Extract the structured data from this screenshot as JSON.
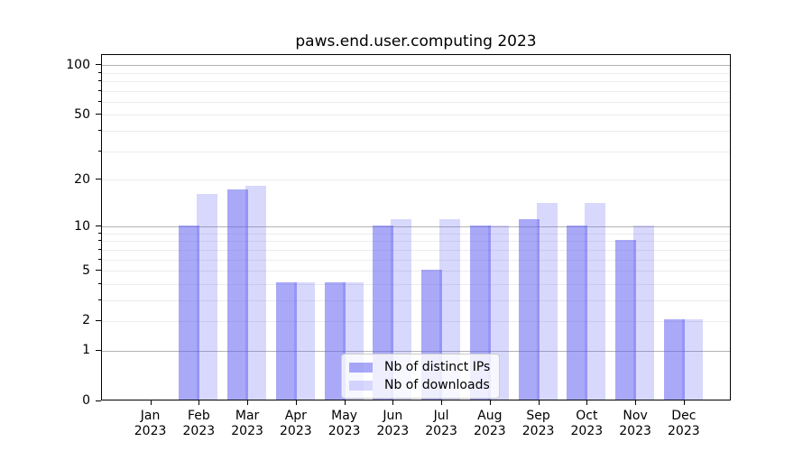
{
  "title": "paws.end.user.computing 2023",
  "chart_data": {
    "type": "bar",
    "title": "paws.end.user.computing 2023",
    "x_year": "2023",
    "categories": [
      "Jan",
      "Feb",
      "Mar",
      "Apr",
      "May",
      "Jun",
      "Jul",
      "Aug",
      "Sep",
      "Oct",
      "Nov",
      "Dec"
    ],
    "series": [
      {
        "name": "Nb of distinct IPs",
        "color": "rgba(90,90,242,0.52)",
        "values": [
          0,
          10,
          17,
          4,
          4,
          10,
          5,
          10,
          11,
          10,
          8,
          2
        ]
      },
      {
        "name": "Nb of downloads",
        "color": "rgba(90,90,242,0.24)",
        "values": [
          0,
          16,
          18,
          4,
          4,
          11,
          11,
          10,
          14,
          14,
          10,
          2
        ]
      }
    ],
    "y_scale": "log10(1+x)",
    "ylim": [
      0,
      116
    ],
    "y_tick_values": [
      0,
      1,
      2,
      5,
      10,
      20,
      50,
      100
    ],
    "y_tick_labels": [
      "0",
      "1",
      "2",
      "5",
      "10",
      "20",
      "50",
      "100"
    ],
    "gridlines": {
      "major": [
        1,
        10,
        100
      ],
      "minor": [
        2,
        3,
        4,
        5,
        6,
        7,
        8,
        9,
        20,
        30,
        40,
        50,
        60,
        70,
        80,
        90
      ]
    },
    "legend_position": "lower center",
    "grid": true
  },
  "colors": {
    "major_grid": "#b3b3b3",
    "minor_grid": "#ececec",
    "spine": "#000000",
    "background": "#ffffff"
  }
}
